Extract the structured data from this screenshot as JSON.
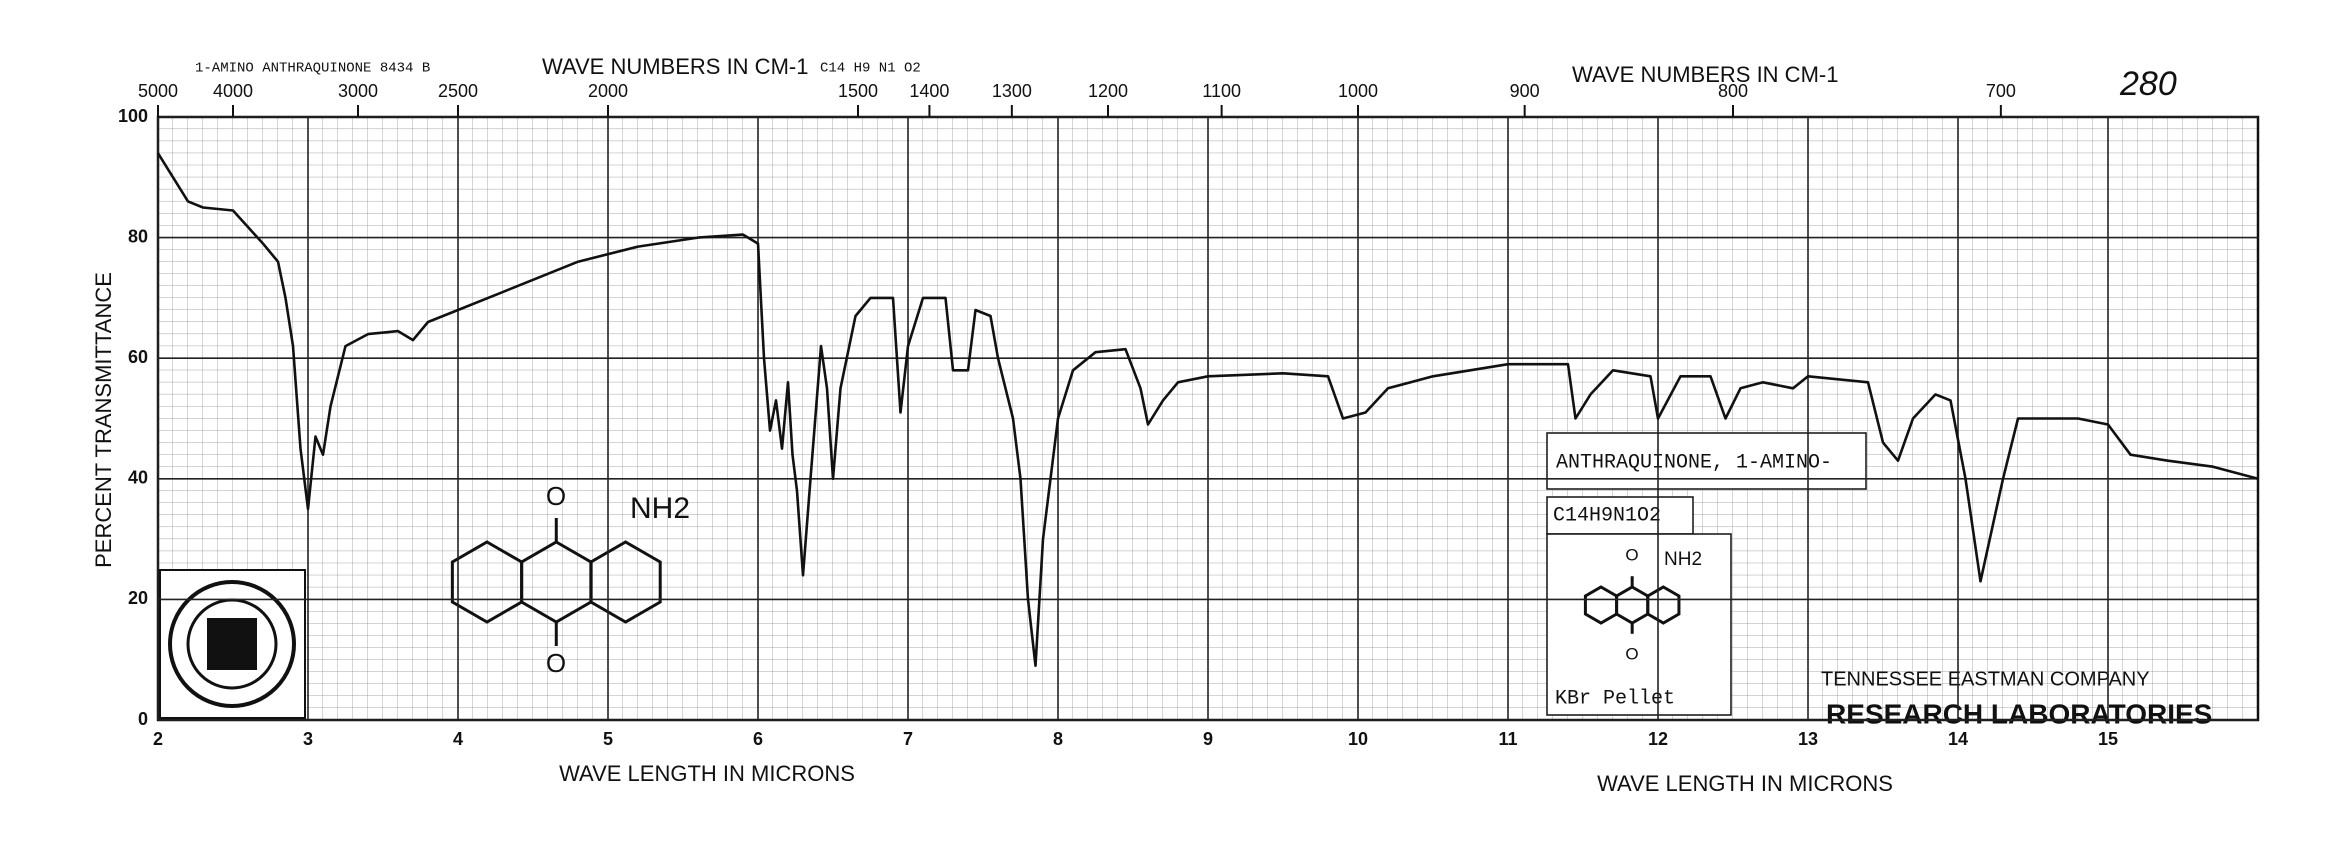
{
  "chart_data": {
    "type": "line",
    "header_left": "1-AMINO ANTHRAQUINONE   8434 B",
    "x2_label": "WAVE NUMBERS IN CM-1",
    "x2_label_right": "WAVE NUMBERS IN CM-1",
    "formula_header": "C14 H9 N1 O2",
    "page_number": "280",
    "ylabel": "PERCENT TRANSMITTANCE",
    "xlabel": "WAVE LENGTH IN MICRONS",
    "xlabel_right": "WAVE LENGTH IN MICRONS",
    "structure_labels": {
      "top": "O",
      "bottom": "O",
      "group": "NH2"
    },
    "inset": {
      "name": "ANTHRAQUINONE, 1-AMINO-",
      "formula": "C14H9N1O2",
      "top": "O",
      "bottom": "O",
      "group": "NH2",
      "sample": "KBr Pellet"
    },
    "company": "TENNESSEE EASTMAN COMPANY",
    "laboratory": "RESEARCH LABORATORIES",
    "color": "#111111",
    "grid": true,
    "xlim": [
      2,
      16
    ],
    "ylim": [
      0,
      100
    ],
    "xticks": [
      2,
      3,
      4,
      5,
      6,
      7,
      8,
      9,
      10,
      11,
      12,
      13,
      14,
      15
    ],
    "yticks": [
      0,
      20,
      40,
      60,
      80,
      100
    ],
    "x2ticks": [
      5000,
      4000,
      3000,
      2500,
      2000,
      1500,
      1400,
      1300,
      1200,
      1100,
      1000,
      900,
      800,
      700
    ],
    "x": [
      2.0,
      2.1,
      2.2,
      2.3,
      2.5,
      2.7,
      2.8,
      2.85,
      2.9,
      2.95,
      3.0,
      3.05,
      3.1,
      3.15,
      3.25,
      3.4,
      3.6,
      3.7,
      3.8,
      4.0,
      4.3,
      4.5,
      4.8,
      5.2,
      5.6,
      5.9,
      6.0,
      6.04,
      6.08,
      6.12,
      6.16,
      6.2,
      6.23,
      6.26,
      6.3,
      6.35,
      6.42,
      6.46,
      6.5,
      6.55,
      6.65,
      6.75,
      6.9,
      6.95,
      7.0,
      7.1,
      7.25,
      7.3,
      7.4,
      7.45,
      7.55,
      7.6,
      7.7,
      7.75,
      7.8,
      7.85,
      7.9,
      8.0,
      8.1,
      8.25,
      8.45,
      8.55,
      8.6,
      8.7,
      8.8,
      9.0,
      9.5,
      9.8,
      9.9,
      10.05,
      10.2,
      10.5,
      11.0,
      11.4,
      11.45,
      11.55,
      11.7,
      11.95,
      12.0,
      12.15,
      12.35,
      12.45,
      12.55,
      12.7,
      12.9,
      13.0,
      13.4,
      13.5,
      13.6,
      13.7,
      13.85,
      13.95,
      14.05,
      14.15,
      14.3,
      14.4,
      14.8,
      15.0,
      15.15,
      15.4,
      15.7,
      16.0
    ],
    "values": [
      94,
      90,
      86,
      85,
      84.5,
      79,
      76,
      70,
      62,
      45,
      35,
      47,
      44,
      52,
      62,
      64,
      64.5,
      63,
      66,
      68,
      71,
      73,
      76,
      78.5,
      80,
      80.5,
      79,
      60,
      48,
      53,
      45,
      56,
      44,
      38,
      24,
      40,
      62,
      55,
      40,
      55,
      67,
      70,
      70,
      51,
      62,
      70,
      70,
      58,
      58,
      68,
      67,
      60,
      50,
      40,
      20,
      9,
      30,
      50,
      58,
      61,
      61.5,
      55,
      49,
      53,
      56,
      57,
      57.5,
      57,
      50,
      51,
      55,
      57,
      59,
      59,
      50,
      54,
      58,
      57,
      50,
      57,
      57,
      50,
      55,
      56,
      55,
      57,
      56,
      46,
      43,
      50,
      54,
      53,
      40,
      23,
      40,
      50,
      50,
      49,
      44,
      43,
      42,
      40
    ]
  }
}
